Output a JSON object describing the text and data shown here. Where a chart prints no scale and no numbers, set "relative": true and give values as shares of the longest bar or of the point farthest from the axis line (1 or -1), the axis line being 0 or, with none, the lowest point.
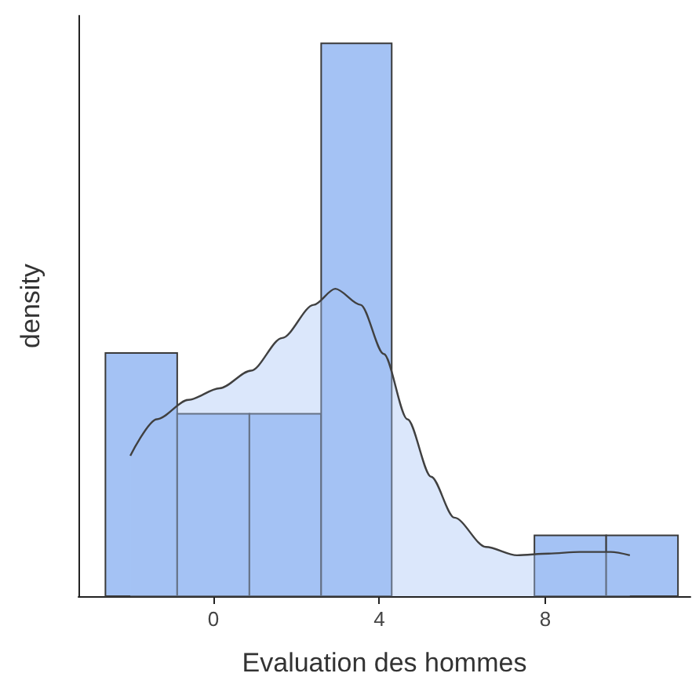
{
  "chart_data": {
    "type": "histogram",
    "xlabel": "Evaluation des hommes",
    "ylabel": "density",
    "relative": true,
    "bins": [
      -2.6,
      -0.87,
      0.87,
      2.6,
      4.3,
      7.74,
      9.47,
      11.2
    ],
    "values": [
      0.44,
      0.33,
      0.33,
      1,
      0,
      0.11,
      0.11
    ],
    "color": "#a4c2f4",
    "xlim": [
      -3.25,
      11.5
    ],
    "xticks": [
      0,
      4,
      8
    ],
    "series": [
      {
        "type": "area",
        "color": "#404040",
        "x": [
          -2.0,
          -1.36,
          -0.6,
          0.15,
          0.91,
          1.66,
          2.42,
          2.94,
          3.55,
          4.11,
          4.68,
          5.25,
          5.81,
          6.57,
          7.32,
          8.08,
          8.83,
          9.58,
          10.04
        ],
        "values": [
          0.254,
          0.32,
          0.355,
          0.376,
          0.408,
          0.467,
          0.527,
          0.556,
          0.527,
          0.438,
          0.32,
          0.216,
          0.142,
          0.089,
          0.074,
          0.077,
          0.08,
          0.08,
          0.074
        ]
      }
    ]
  }
}
